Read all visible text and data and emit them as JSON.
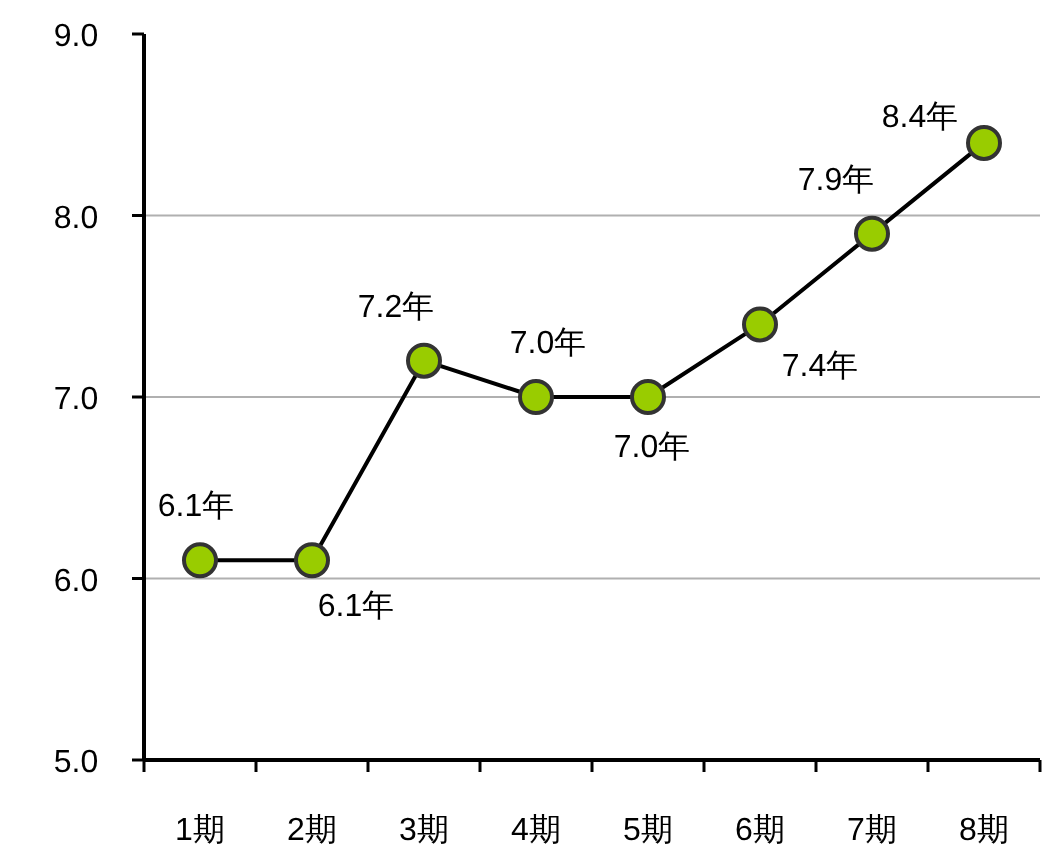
{
  "chart_data": {
    "type": "line",
    "categories": [
      "1期",
      "2期",
      "3期",
      "4期",
      "5期",
      "6期",
      "7期",
      "8期"
    ],
    "series": [
      {
        "color": "#99cc00",
        "values": [
          6.1,
          6.1,
          7.2,
          7.0,
          7.0,
          7.4,
          7.9,
          8.4
        ],
        "value_labels": [
          "6.1年",
          "6.1年",
          "7.2年",
          "7.0年",
          "7.0年",
          "7.4年",
          "7.9年",
          "8.4年"
        ]
      }
    ],
    "ylim": [
      5,
      9
    ],
    "yticks": [
      {
        "value": 5,
        "label": "5.0"
      },
      {
        "value": 6,
        "label": "6.0"
      },
      {
        "value": 7,
        "label": "7.0"
      },
      {
        "value": 8,
        "label": "8.0"
      },
      {
        "value": 9,
        "label": "9.0"
      }
    ],
    "grid": "y",
    "marker": "circle",
    "line_style": "solid"
  }
}
